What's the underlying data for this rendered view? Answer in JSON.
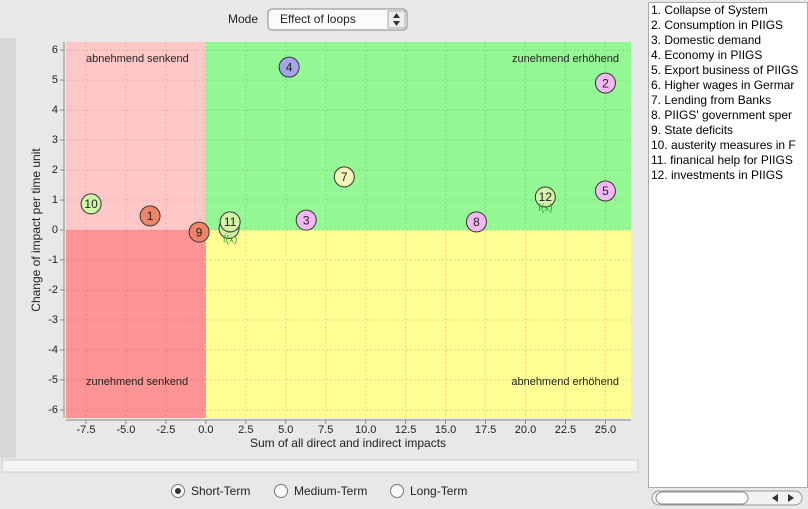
{
  "mode_label": "Mode",
  "mode_value": "Effect of loops",
  "chart_data": {
    "type": "scatter",
    "xlabel": "Sum of all direct and indirect impacts",
    "ylabel": "Change of impact per time unit",
    "xlim": [
      -8.75,
      26.6
    ],
    "ylim": [
      -6.27,
      6.27
    ],
    "xticks": [
      -7.5,
      {
        "value": -5,
        "label": "-5.0"
      },
      -2.5,
      {
        "value": 0,
        "label": "0.0"
      },
      2.5,
      {
        "value": 5,
        "label": "5.0"
      },
      7.5,
      {
        "value": 10,
        "label": "10.0"
      },
      12.5,
      {
        "value": 15,
        "label": "15.0"
      },
      17.5,
      {
        "value": 20,
        "label": "20.0"
      },
      22.5,
      {
        "value": 25,
        "label": "25.0"
      }
    ],
    "yticks": [
      6,
      5,
      4,
      3,
      2,
      1,
      0,
      -1,
      -2,
      -3,
      -4,
      -5,
      -6
    ],
    "grid": true,
    "quadrants": [
      {
        "label": "abnehmend senkend",
        "color": "#ffc8c8"
      },
      {
        "label": "zunehmend erhöhend",
        "color": "#94f894"
      },
      {
        "label": "zunehmend senkend",
        "color": "#ff9494"
      },
      {
        "label": "abnehmend erhöhend",
        "color": "#ffff94"
      }
    ],
    "points": [
      {
        "label": "1",
        "x": -3.49,
        "y": 0.47,
        "color": "#f08468"
      },
      {
        "label": "2",
        "x": 25.0,
        "y": 4.9,
        "color": "#f4b8f4"
      },
      {
        "label": "3",
        "x": 6.28,
        "y": 0.33,
        "color": "#f4b8f4"
      },
      {
        "label": "4",
        "x": 5.21,
        "y": 5.43,
        "color": "#a4a4e8"
      },
      {
        "label": "5",
        "x": 25.0,
        "y": 1.3,
        "color": "#f4b8f4"
      },
      {
        "label": "6",
        "x": 1.45,
        "y": 0.05,
        "color": "#c8f0a0"
      },
      {
        "label": "7",
        "x": 8.66,
        "y": 1.77,
        "color": "#f4f4b8"
      },
      {
        "label": "8",
        "x": 16.93,
        "y": 0.27,
        "color": "#f4b8f4"
      },
      {
        "label": "9",
        "x": -0.42,
        "y": -0.07,
        "color": "#f08468"
      },
      {
        "label": "10",
        "x": -7.18,
        "y": 0.87,
        "color": "#d0f4a8"
      },
      {
        "label": "11",
        "x": 1.52,
        "y": 0.27,
        "color": "#d0f4a8"
      },
      {
        "label": "12",
        "x": 21.24,
        "y": 1.1,
        "color": "#d0f4a8"
      }
    ],
    "annotations": [
      {
        "text": "f(x)",
        "x": 1.52,
        "y": -0.33
      },
      {
        "text": "f(x)",
        "x": 21.24,
        "y": 0.73
      }
    ]
  },
  "list_items": [
    "1. Collapse of System",
    "2. Consumption in PIIGS",
    "3. Domestic demand",
    "4. Economy in PIIGS",
    "5. Export business of PIIGS",
    "6. Higher wages in Germar",
    "7. Lending from Banks",
    "8. PIIGS' government sper",
    "9. State deficits",
    "10. austerity measures in F",
    "11. finanical help for PIIGS",
    "12. investments in PIIGS"
  ],
  "radio_options": [
    "Short-Term",
    "Medium-Term",
    "Long-Term"
  ],
  "radio_selected": 0
}
